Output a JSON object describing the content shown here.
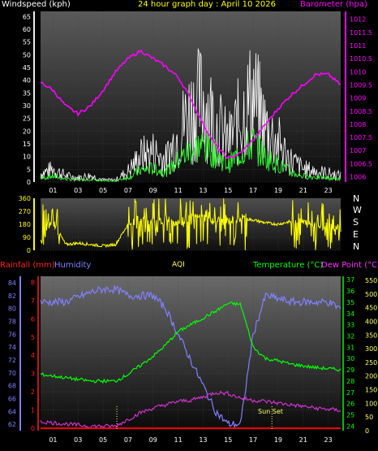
{
  "header": {
    "windspeed_label": "Windspeed (kph)",
    "title": "24 hour graph day : April 10 2026",
    "barometer_label": "Barometer (hpa)"
  },
  "middle": {
    "compass": [
      "N",
      "W",
      "S",
      "E",
      "N"
    ]
  },
  "bottom_header": {
    "rainfall_label": "Rainfall (mm)",
    "humidity_label": "Humidity",
    "aqi_label": "AQI",
    "temperature_label": "Temperature (°C)",
    "dewpoint_label": "Dew Point (°C)"
  },
  "annotations": {
    "sun_set": "Sun Set"
  },
  "colors": {
    "windspeed": "#ffffff",
    "gust_avg": "#33ff33",
    "barometer": "#ff00ff",
    "wind_dir": "#ffff00",
    "rainfall": "#ff0000",
    "humidity": "#8080ff",
    "temperature": "#00ff00",
    "dewpoint": "#cc33cc",
    "aqi": "#ffff66"
  },
  "chart_data": [
    {
      "type": "line",
      "title": "24 hour graph day : April 10 2026",
      "x_ticks": [
        "01",
        "03",
        "05",
        "07",
        "09",
        "11",
        "13",
        "15",
        "17",
        "19",
        "21",
        "23"
      ],
      "y_left_ticks": [
        0,
        5,
        10,
        15,
        20,
        25,
        30,
        35,
        40,
        45,
        50,
        55,
        60,
        65
      ],
      "y_left_label": "Windspeed (kph)",
      "y_right_ticks": [
        1006,
        1006.5,
        1007,
        1007.5,
        1008,
        1008.5,
        1009,
        1009.5,
        1010,
        1010.5,
        1011,
        1011.5,
        1012
      ],
      "y_right_label": "Barometer (hpa)",
      "series": [
        {
          "name": "Windspeed (kph)",
          "x": [
            0,
            1,
            2,
            3,
            4,
            5,
            6,
            7,
            8,
            9,
            10,
            11,
            12,
            13,
            14,
            15,
            16,
            17,
            18,
            19,
            20,
            21,
            22,
            23,
            24
          ],
          "y": [
            4,
            6,
            3,
            2,
            3,
            1,
            1,
            5,
            12,
            14,
            10,
            22,
            33,
            38,
            28,
            18,
            30,
            40,
            25,
            18,
            10,
            6,
            5,
            4,
            3
          ]
        },
        {
          "name": "Barometer (hpa)",
          "x": [
            0,
            1,
            2,
            3,
            4,
            5,
            6,
            7,
            8,
            9,
            10,
            11,
            12,
            13,
            14,
            15,
            16,
            17,
            18,
            19,
            20,
            21,
            22,
            23,
            24
          ],
          "y": [
            1009.6,
            1009.3,
            1008.7,
            1008.4,
            1008.7,
            1009.3,
            1010.0,
            1010.5,
            1010.8,
            1010.5,
            1010.2,
            1009.8,
            1009.0,
            1008.0,
            1007.2,
            1006.7,
            1006.9,
            1007.4,
            1008.0,
            1008.6,
            1009.1,
            1009.5,
            1009.9,
            1009.9,
            1009.5
          ]
        }
      ]
    },
    {
      "type": "line",
      "x_ticks": [
        "01",
        "03",
        "05",
        "07",
        "09",
        "11",
        "13",
        "15",
        "17",
        "19",
        "21",
        "23"
      ],
      "y_ticks": [
        0,
        90,
        180,
        270,
        360
      ],
      "series": [
        {
          "name": "Wind Direction",
          "x": [
            0,
            1,
            2,
            3,
            4,
            5,
            6,
            7,
            8,
            9,
            10,
            11,
            12,
            13,
            14,
            15,
            16,
            17,
            18,
            19,
            20,
            21,
            22,
            23,
            24
          ],
          "y": [
            60,
            200,
            40,
            50,
            40,
            30,
            40,
            180,
            220,
            200,
            210,
            190,
            220,
            230,
            210,
            200,
            220,
            210,
            190,
            180,
            200,
            190,
            180,
            170,
            150
          ]
        }
      ]
    },
    {
      "type": "line",
      "x_ticks": [
        "01",
        "03",
        "05",
        "07",
        "09",
        "11",
        "13",
        "15",
        "17",
        "19",
        "21",
        "23"
      ],
      "y_left_ticks": [
        62,
        64,
        66,
        68,
        70,
        72,
        74,
        76,
        78,
        80,
        82,
        84
      ],
      "y_rain_ticks": [
        0,
        1,
        2,
        3,
        4,
        5,
        6,
        7,
        8
      ],
      "y_temp_ticks": [
        24,
        25,
        26,
        27,
        28,
        29,
        30,
        31,
        32,
        33,
        34,
        35,
        36,
        37
      ],
      "y_aqi_ticks": [
        0,
        50,
        100,
        150,
        200,
        250,
        300,
        350,
        400,
        450,
        500,
        550
      ],
      "series": [
        {
          "name": "Humidity",
          "x": [
            0,
            2,
            4,
            5,
            6,
            7,
            8,
            9,
            10,
            11,
            12,
            13,
            14,
            15,
            16,
            17,
            18,
            20,
            22,
            23,
            24
          ],
          "y": [
            81,
            81,
            82.5,
            83,
            83,
            82,
            82,
            82,
            80,
            76,
            72,
            68,
            64,
            62,
            62,
            76,
            82,
            81,
            81,
            81,
            80
          ]
        },
        {
          "name": "Temperature (°C)",
          "x": [
            0,
            2,
            4,
            6,
            7,
            8,
            9,
            10,
            11,
            12,
            13,
            14,
            15,
            16,
            17,
            18,
            19,
            20,
            22,
            24
          ],
          "y": [
            28.6,
            28.3,
            28.0,
            28.0,
            28.6,
            29.4,
            30.2,
            31.2,
            32.4,
            33.0,
            33.6,
            34.2,
            34.9,
            34.8,
            31.0,
            30.0,
            29.8,
            29.5,
            29.2,
            29.0
          ]
        },
        {
          "name": "Dew Point (°C)",
          "x": [
            0,
            2,
            4,
            6,
            7,
            8,
            9,
            10,
            11,
            12,
            13,
            14,
            15,
            16,
            17,
            18,
            20,
            22,
            24
          ],
          "y": [
            24.4,
            24.2,
            24.0,
            24.0,
            24.6,
            25.2,
            25.6,
            25.9,
            26.2,
            26.3,
            26.6,
            27.0,
            26.9,
            26.5,
            26.3,
            26.2,
            25.9,
            25.6,
            25.4
          ]
        },
        {
          "name": "Rainfall (mm)",
          "x": [
            0,
            24
          ],
          "y": [
            0,
            0
          ]
        }
      ]
    }
  ]
}
